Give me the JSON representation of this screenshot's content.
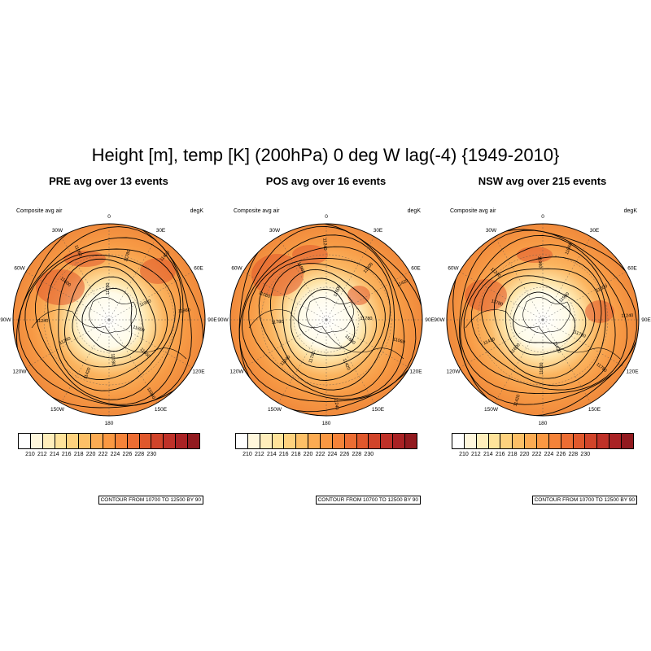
{
  "title": "Height [m], temp [K] (200hPa) 0 deg W lag(-4) {1949-2010}",
  "colorbar": {
    "labels": [
      "210",
      "212",
      "214",
      "216",
      "218",
      "220",
      "222",
      "224",
      "226",
      "228",
      "230"
    ],
    "colors": [
      "#ffffff",
      "#fff7dc",
      "#ffeebb",
      "#ffe39a",
      "#fed27e",
      "#fdc067",
      "#fcab52",
      "#fa9842",
      "#f58339",
      "#ec6d33",
      "#e0582c",
      "#d1442a",
      "#bf3128",
      "#a92224",
      "#921a1f"
    ]
  },
  "panels": [
    {
      "title": "PRE avg over 13 events",
      "subtitle_left": "Composite avg air",
      "subtitle_right": "degK",
      "contour_info": "CONTOUR FROM 10700 TO 12500 BY 90",
      "lon_labels": [
        "180",
        "150E",
        "120E",
        "90E",
        "60E",
        "30E",
        "0",
        "30W",
        "60W",
        "90W",
        "120W",
        "150W"
      ],
      "contour_labels": [
        "11780",
        "11960",
        "11600",
        "11420",
        "11240",
        "11060",
        "11420",
        "11600",
        "11780",
        "11240",
        "11600",
        "11780",
        "11960",
        "11060"
      ]
    },
    {
      "title": "POS avg over 16 events",
      "subtitle_left": "Composite avg air",
      "subtitle_right": "degK",
      "contour_info": "CONTOUR FROM 10700 TO 12500 BY 90",
      "lon_labels": [
        "180",
        "150E",
        "120E",
        "90E",
        "60E",
        "30E",
        "0",
        "30W",
        "60W",
        "90W",
        "120W",
        "150W"
      ],
      "contour_labels": [
        "11600",
        "11780",
        "11420",
        "11240",
        "11060",
        "11240",
        "11420",
        "11600",
        "11780",
        "11780",
        "11960",
        "11600",
        "11060",
        "11240"
      ]
    },
    {
      "title": "NSW avg over 215 events",
      "subtitle_left": "Composite avg air",
      "subtitle_right": "degK",
      "contour_info": "CONTOUR FROM 10700 TO 12500 BY 90",
      "lon_labels": [
        "180",
        "150E",
        "120E",
        "90E",
        "60E",
        "30E",
        "0",
        "30W",
        "60W",
        "90W",
        "120W",
        "150W"
      ],
      "contour_labels": [
        "11960",
        "11780",
        "11600",
        "11420",
        "11240",
        "11060",
        "11240",
        "11420",
        "11600",
        "11780",
        "11960",
        "11600",
        "11780",
        "11420"
      ]
    }
  ]
}
